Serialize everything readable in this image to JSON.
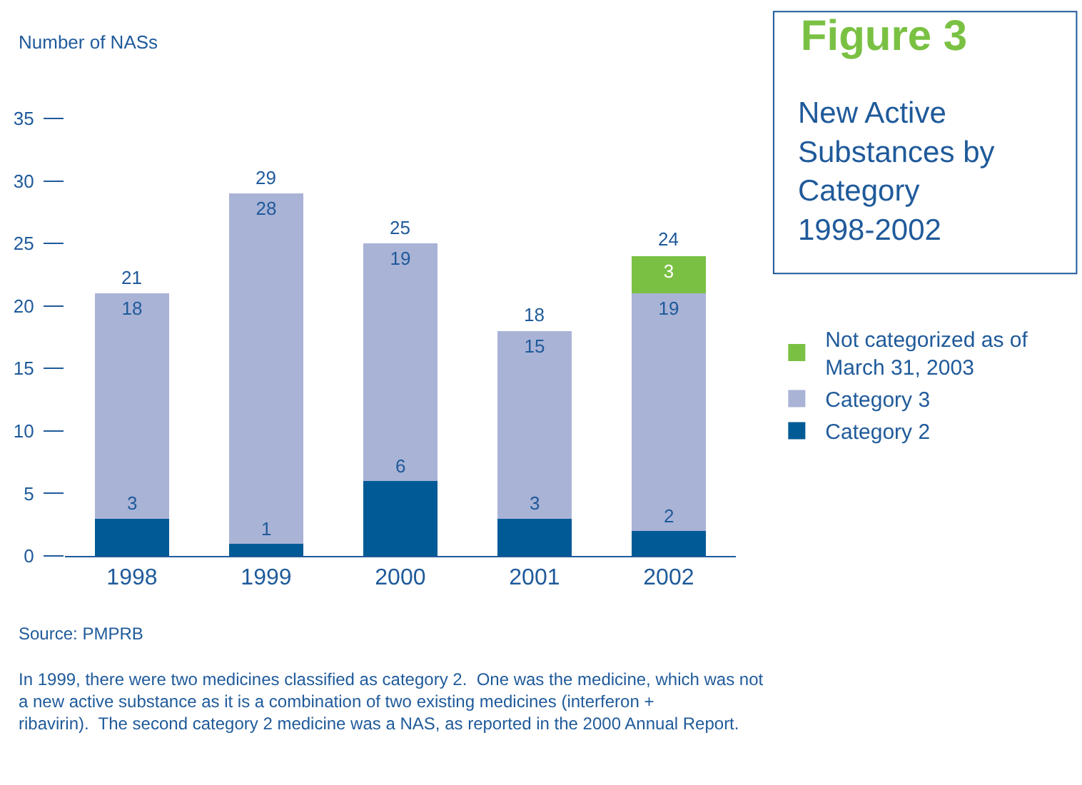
{
  "chart_data": {
    "type": "bar",
    "stacked": true,
    "title": "Figure 3",
    "subtitle": "New Active Substances by Category 1998-2002",
    "ylabel": "Number of NASs",
    "categories": [
      "1998",
      "1999",
      "2000",
      "2001",
      "2002"
    ],
    "series": [
      {
        "name": "Category 2",
        "color": "#005a96",
        "values": [
          3,
          1,
          6,
          3,
          2
        ]
      },
      {
        "name": "Category 3",
        "color": "#a9b3d6",
        "values": [
          18,
          28,
          19,
          15,
          19
        ]
      },
      {
        "name": "Not categorized as of March 31, 2003",
        "color": "#7ac143",
        "values": [
          null,
          null,
          null,
          null,
          3
        ]
      }
    ],
    "totals": [
      "21",
      "29",
      "25",
      "18",
      "24"
    ],
    "data_labels": true,
    "ylim": [
      0,
      35
    ],
    "yticks": [
      0,
      5,
      10,
      15,
      20,
      25,
      30,
      35
    ],
    "legend": "right",
    "annotations": [
      "Source: PMPRB",
      "In 1999, there were two medicines classified as category 2.  One was the medicine, which was not a new active substance as it is a combination of two existing medicines (interferon + ribavirin).  The second category 2 medicine was a NAS, as reported in the 2000 Annual Report."
    ]
  }
}
